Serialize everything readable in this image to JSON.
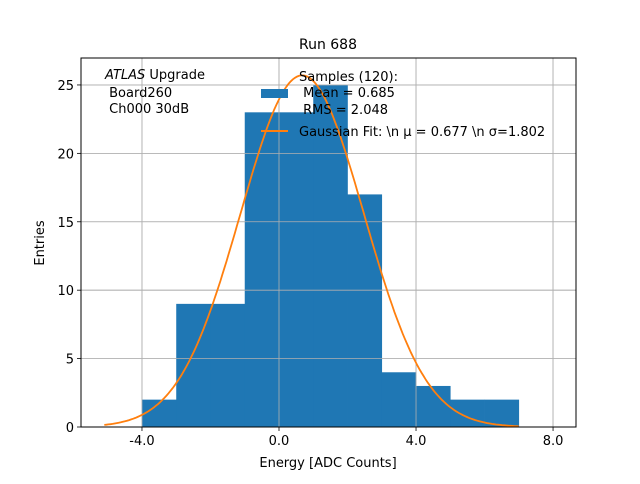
{
  "chart_data": {
    "type": "bar",
    "title": "Run 688",
    "xlabel": "Energy [ADC Counts]",
    "ylabel": "Entries",
    "xlim": [
      -5.78,
      8.67
    ],
    "ylim": [
      0,
      26.97
    ],
    "xticks": [
      -4.0,
      0.0,
      4.0,
      8.0
    ],
    "xtick_labels": [
      "-4.0",
      "0.0",
      "4.0",
      "8.0"
    ],
    "yticks": [
      0,
      5,
      10,
      15,
      20,
      25
    ],
    "ytick_labels": [
      "0",
      "5",
      "10",
      "15",
      "20",
      "25"
    ],
    "grid": true,
    "histogram": {
      "bin_edges": [
        -4,
        -3,
        -2,
        -1,
        0,
        1,
        2,
        3,
        4,
        5,
        6,
        7
      ],
      "counts": [
        2,
        9,
        9,
        23,
        23,
        25,
        17,
        4,
        3,
        2,
        2
      ],
      "color": "#1f77b4"
    },
    "fit": {
      "type": "gaussian",
      "mu": 0.677,
      "sigma": 1.802,
      "amplitude": 25.7,
      "x_range": [
        -5.1,
        7.0
      ],
      "color": "#ff7f0e"
    },
    "annotation": {
      "line1_italic": "ATLAS",
      "line1_rest": " Upgrade",
      "line2": " Board260",
      "line3": " Ch000 30dB"
    },
    "legend": {
      "placement": "top-center",
      "hist_lines": [
        "Samples (120):",
        " Mean = 0.685",
        " RMS = 2.048"
      ],
      "fit_label": "Gaussian Fit: \\n μ = 0.677 \\n σ=1.802"
    }
  }
}
